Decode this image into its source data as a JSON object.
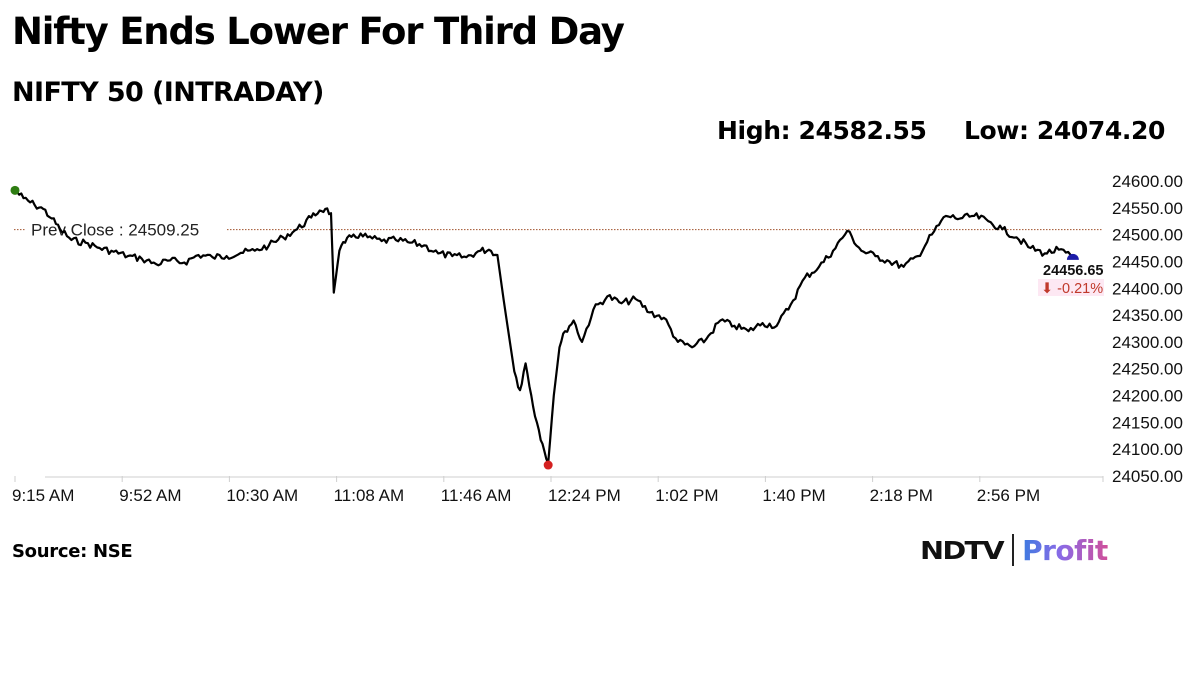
{
  "header": {
    "title": "Nifty Ends Lower For Third Day",
    "subtitle": "NIFTY 50 (INTRADAY)",
    "high_label": "High: 24582.55",
    "low_label": "Low: 24074.20"
  },
  "footer": {
    "source": "Source: NSE",
    "logo_left": "NDTV",
    "logo_right": "Profit"
  },
  "colors": {
    "line": "#000000",
    "prev_close_line": "#a0522d",
    "start_marker": "#2e7d12",
    "low_marker": "#d42020",
    "end_marker": "#1c1ca8",
    "change_negative": "#c0392b",
    "change_bg": "#fde8f3"
  },
  "annotations": {
    "prev_close_label": "Prev Close : 24509.25",
    "last_value": "24456.65",
    "change_pct": "⬇ -0.21%"
  },
  "chart_data": {
    "type": "line",
    "title": "NIFTY 50 (INTRADAY)",
    "subtitle": "Nifty Ends Lower For Third Day",
    "xlabel": "",
    "ylabel": "",
    "x_tick_labels": [
      "9:15 AM",
      "9:52 AM",
      "10:30 AM",
      "11:08 AM",
      "11:46 AM",
      "12:24 PM",
      "1:02 PM",
      "1:40 PM",
      "2:18 PM",
      "2:56 PM"
    ],
    "y_tick_labels": [
      "24600.00",
      "24550.00",
      "24500.00",
      "24450.00",
      "24400.00",
      "24350.00",
      "24300.00",
      "24250.00",
      "24200.00",
      "24150.00",
      "24100.00",
      "24050.00"
    ],
    "ylim": [
      24050,
      24600
    ],
    "y_axis_position": "right",
    "grid": false,
    "legend": "none",
    "reference_lines": [
      {
        "name": "Prev Close",
        "value": 24509.25,
        "style": "dotted"
      }
    ],
    "high": 24582.55,
    "low": 24074.2,
    "last": 24456.65,
    "change_pct": -0.21,
    "series": [
      {
        "name": "NIFTY 50",
        "x": [
          "9:15",
          "9:18",
          "9:22",
          "9:25",
          "9:28",
          "9:31",
          "9:35",
          "9:40",
          "9:45",
          "9:50",
          "9:55",
          "10:00",
          "10:05",
          "10:10",
          "10:15",
          "10:20",
          "10:25",
          "10:30",
          "10:35",
          "10:40",
          "10:45",
          "10:50",
          "10:55",
          "11:00",
          "11:03",
          "11:05",
          "11:07",
          "11:08",
          "11:10",
          "11:12",
          "11:15",
          "11:20",
          "11:25",
          "11:30",
          "11:35",
          "11:40",
          "11:45",
          "11:50",
          "11:55",
          "12:00",
          "12:03",
          "12:06",
          "12:09",
          "12:12",
          "12:14",
          "12:16",
          "12:18",
          "12:20",
          "12:22",
          "12:24",
          "12:26",
          "12:28",
          "12:30",
          "12:33",
          "12:36",
          "12:40",
          "12:45",
          "12:50",
          "12:55",
          "1:00",
          "1:05",
          "1:10",
          "1:15",
          "1:20",
          "1:25",
          "1:30",
          "1:35",
          "1:40",
          "1:45",
          "1:50",
          "1:55",
          "2:00",
          "2:05",
          "2:10",
          "2:15",
          "2:20",
          "2:25",
          "2:30",
          "2:35",
          "2:40",
          "2:45",
          "2:50",
          "2:55",
          "3:00",
          "3:05",
          "3:10",
          "3:15",
          "3:20",
          "3:25",
          "3:30"
        ],
        "values": [
          24582.55,
          24568,
          24555,
          24548,
          24530,
          24510,
          24490,
          24485,
          24475,
          24468,
          24460,
          24455,
          24445,
          24452,
          24448,
          24462,
          24458,
          24460,
          24466,
          24470,
          24480,
          24495,
          24510,
          24532,
          24545,
          24548,
          24540,
          24392,
          24470,
          24485,
          24500,
          24495,
          24488,
          24490,
          24485,
          24480,
          24465,
          24460,
          24458,
          24470,
          24472,
          24462,
          24350,
          24245,
          24210,
          24260,
          24200,
          24150,
          24110,
          24074.2,
          24200,
          24290,
          24320,
          24340,
          24300,
          24360,
          24385,
          24372,
          24380,
          24355,
          24345,
          24300,
          24290,
          24305,
          24340,
          24330,
          24320,
          24335,
          24330,
          24370,
          24420,
          24440,
          24470,
          24507,
          24470,
          24460,
          24450,
          24440,
          24460,
          24500,
          24535,
          24530,
          24535,
          24525,
          24510,
          24495,
          24475,
          24465,
          24472,
          24456.65
        ]
      }
    ]
  }
}
